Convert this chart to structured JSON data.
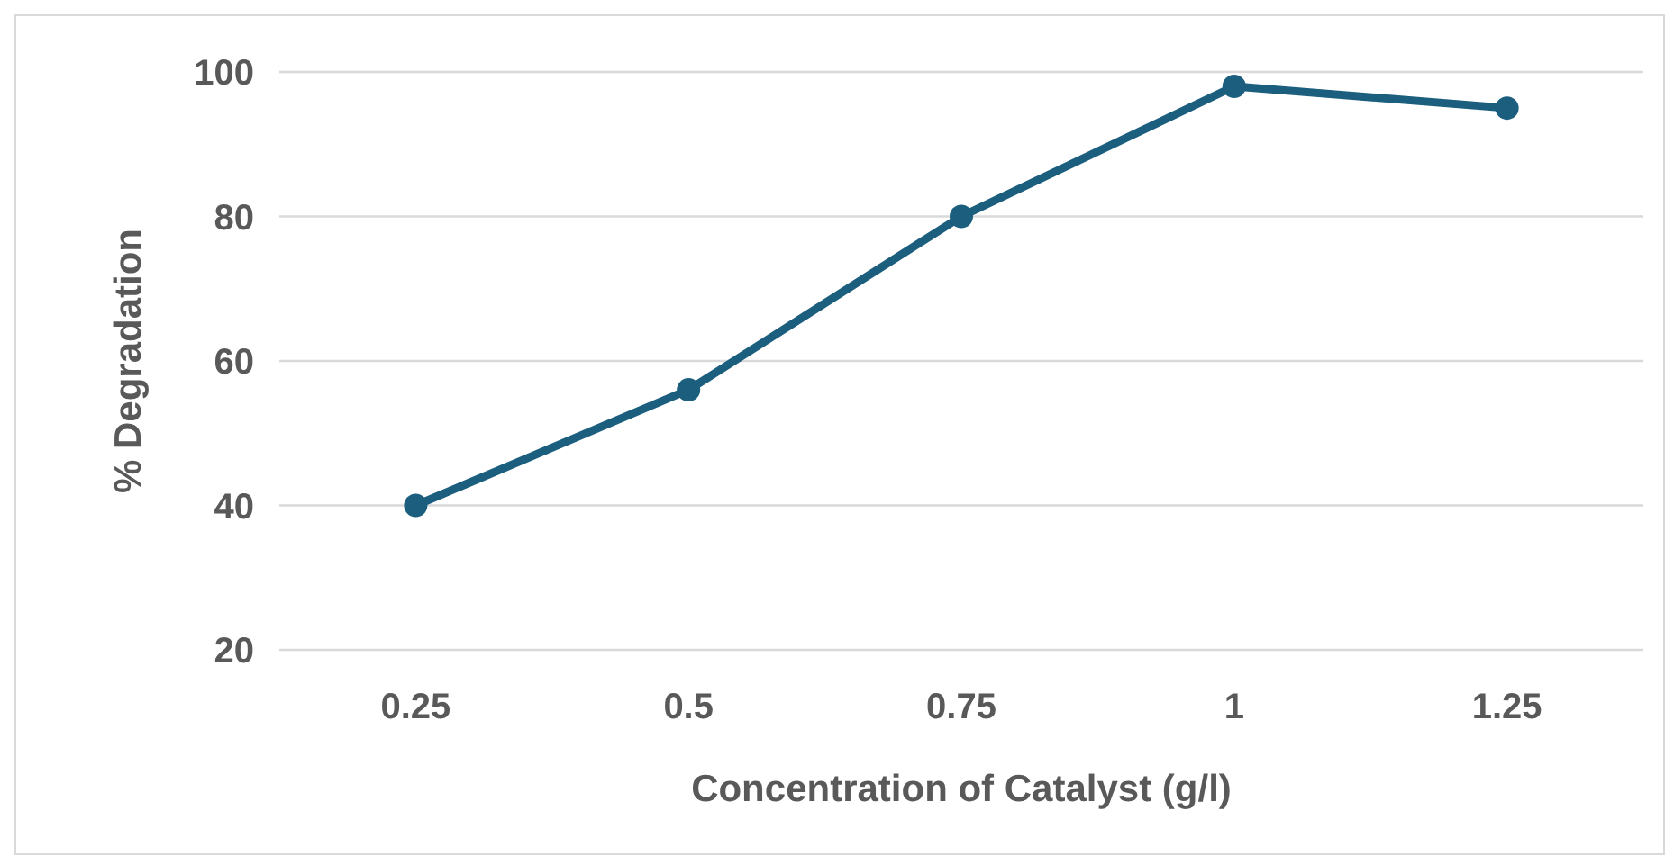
{
  "chart_data": {
    "type": "line",
    "xlabel": "Concentration of Catalyst (g/l)",
    "ylabel": "% Degradation",
    "categories": [
      "0.25",
      "0.5",
      "0.75",
      "1",
      "1.25"
    ],
    "series": [
      {
        "color": "#1b5e7e",
        "values": [
          40,
          56,
          80,
          98,
          95
        ]
      }
    ],
    "ylim": [
      20,
      100
    ],
    "yticks": [
      20,
      40,
      60,
      80,
      100
    ],
    "grid": "y",
    "marker": "circle",
    "line_style": "solid"
  }
}
